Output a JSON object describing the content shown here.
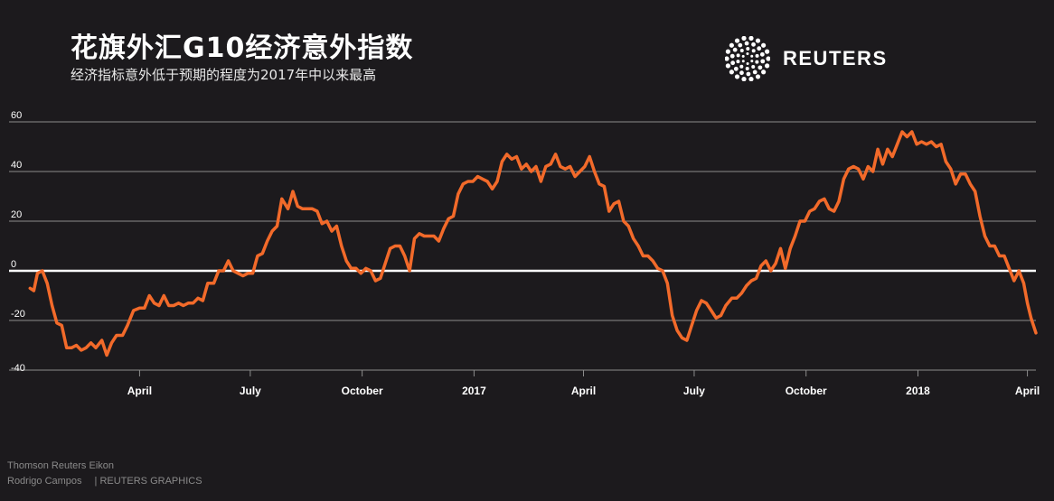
{
  "header": {
    "title": "花旗外汇G10经济意外指数",
    "subtitle": "经济指标意外低于预期的程度为2017年中以来最高"
  },
  "logo": {
    "text": "REUTERS",
    "icon": "reuters-dot-logo-icon"
  },
  "footer": {
    "source": "Thomson Reuters Eikon",
    "author": "Rodrigo Campos",
    "credit": "| REUTERS GRAPHICS"
  },
  "colors": {
    "background": "#1c1a1d",
    "line": "#f26a2a",
    "grid": "#8c8c8c",
    "zero_line": "#ffffff"
  },
  "chart_data": {
    "type": "line",
    "title": "花旗外汇G10经济意外指数",
    "ylim": [
      -40,
      60
    ],
    "yticks": [
      60,
      40,
      20,
      0,
      -20,
      -40
    ],
    "grid": true,
    "xlim": [
      "2016-01-01",
      "2018-04-08"
    ],
    "xticks": [
      {
        "date": "2016-04-01",
        "label": "April"
      },
      {
        "date": "2016-07-01",
        "label": "July"
      },
      {
        "date": "2016-10-01",
        "label": "October"
      },
      {
        "date": "2017-01-01",
        "label": "2017"
      },
      {
        "date": "2017-04-01",
        "label": "April"
      },
      {
        "date": "2017-07-01",
        "label": "July"
      },
      {
        "date": "2017-10-01",
        "label": "October"
      },
      {
        "date": "2018-01-01",
        "label": "2018"
      },
      {
        "date": "2018-04-01",
        "label": "April"
      }
    ],
    "series": [
      {
        "values": [
          [
            "2016-01-02",
            -7
          ],
          [
            "2016-01-05",
            -8
          ],
          [
            "2016-01-08",
            -1
          ],
          [
            "2016-01-12",
            0
          ],
          [
            "2016-01-16",
            -5
          ],
          [
            "2016-01-20",
            -14
          ],
          [
            "2016-01-24",
            -21
          ],
          [
            "2016-01-28",
            -22
          ],
          [
            "2016-02-01",
            -31
          ],
          [
            "2016-02-05",
            -31
          ],
          [
            "2016-02-09",
            -30
          ],
          [
            "2016-02-13",
            -32
          ],
          [
            "2016-02-17",
            -31
          ],
          [
            "2016-02-21",
            -29
          ],
          [
            "2016-02-25",
            -31
          ],
          [
            "2016-03-01",
            -28
          ],
          [
            "2016-03-05",
            -34
          ],
          [
            "2016-03-09",
            -29
          ],
          [
            "2016-03-13",
            -26
          ],
          [
            "2016-03-18",
            -26
          ],
          [
            "2016-03-22",
            -22
          ],
          [
            "2016-03-27",
            -16
          ],
          [
            "2016-04-01",
            -15
          ],
          [
            "2016-04-05",
            -15
          ],
          [
            "2016-04-09",
            -10
          ],
          [
            "2016-04-13",
            -13
          ],
          [
            "2016-04-17",
            -14
          ],
          [
            "2016-04-21",
            -10
          ],
          [
            "2016-04-25",
            -14
          ],
          [
            "2016-04-29",
            -14
          ],
          [
            "2016-05-03",
            -13
          ],
          [
            "2016-05-07",
            -14
          ],
          [
            "2016-05-11",
            -13
          ],
          [
            "2016-05-15",
            -13
          ],
          [
            "2016-05-19",
            -11
          ],
          [
            "2016-05-23",
            -12
          ],
          [
            "2016-05-27",
            -5
          ],
          [
            "2016-06-01",
            -5
          ],
          [
            "2016-06-05",
            0
          ],
          [
            "2016-06-09",
            0
          ],
          [
            "2016-06-13",
            4
          ],
          [
            "2016-06-17",
            0
          ],
          [
            "2016-06-21",
            -1
          ],
          [
            "2016-06-25",
            -2
          ],
          [
            "2016-06-29",
            -1
          ],
          [
            "2016-07-03",
            -1
          ],
          [
            "2016-07-07",
            6
          ],
          [
            "2016-07-11",
            7
          ],
          [
            "2016-07-15",
            12
          ],
          [
            "2016-07-19",
            16
          ],
          [
            "2016-07-23",
            18
          ],
          [
            "2016-07-27",
            29
          ],
          [
            "2016-08-01",
            25
          ],
          [
            "2016-08-05",
            32
          ],
          [
            "2016-08-09",
            26
          ],
          [
            "2016-08-13",
            25
          ],
          [
            "2016-08-17",
            25
          ],
          [
            "2016-08-21",
            25
          ],
          [
            "2016-08-25",
            24
          ],
          [
            "2016-08-29",
            19
          ],
          [
            "2016-09-02",
            20
          ],
          [
            "2016-09-06",
            16
          ],
          [
            "2016-09-10",
            18
          ],
          [
            "2016-09-14",
            10
          ],
          [
            "2016-09-18",
            4
          ],
          [
            "2016-09-22",
            1
          ],
          [
            "2016-09-26",
            1
          ],
          [
            "2016-09-30",
            -1
          ],
          [
            "2016-10-04",
            1
          ],
          [
            "2016-10-08",
            0
          ],
          [
            "2016-10-12",
            -4
          ],
          [
            "2016-10-16",
            -3
          ],
          [
            "2016-10-20",
            3
          ],
          [
            "2016-10-24",
            9
          ],
          [
            "2016-10-28",
            10
          ],
          [
            "2016-11-01",
            10
          ],
          [
            "2016-11-05",
            6
          ],
          [
            "2016-11-09",
            0
          ],
          [
            "2016-11-13",
            13
          ],
          [
            "2016-11-17",
            15
          ],
          [
            "2016-11-21",
            14
          ],
          [
            "2016-11-25",
            14
          ],
          [
            "2016-11-29",
            14
          ],
          [
            "2016-12-03",
            12
          ],
          [
            "2016-12-07",
            17
          ],
          [
            "2016-12-11",
            21
          ],
          [
            "2016-12-15",
            22
          ],
          [
            "2016-12-19",
            31
          ],
          [
            "2016-12-23",
            35
          ],
          [
            "2016-12-27",
            36
          ],
          [
            "2016-12-31",
            36
          ],
          [
            "2017-01-04",
            38
          ],
          [
            "2017-01-08",
            37
          ],
          [
            "2017-01-12",
            36
          ],
          [
            "2017-01-16",
            33
          ],
          [
            "2017-01-20",
            36
          ],
          [
            "2017-01-24",
            44
          ],
          [
            "2017-01-28",
            47
          ],
          [
            "2017-02-01",
            45
          ],
          [
            "2017-02-05",
            46
          ],
          [
            "2017-02-09",
            41
          ],
          [
            "2017-02-13",
            43
          ],
          [
            "2017-02-17",
            40
          ],
          [
            "2017-02-21",
            42
          ],
          [
            "2017-02-25",
            36
          ],
          [
            "2017-03-01",
            42
          ],
          [
            "2017-03-05",
            43
          ],
          [
            "2017-03-09",
            47
          ],
          [
            "2017-03-13",
            42
          ],
          [
            "2017-03-17",
            41
          ],
          [
            "2017-03-21",
            42
          ],
          [
            "2017-03-25",
            38
          ],
          [
            "2017-03-29",
            40
          ],
          [
            "2017-04-02",
            42
          ],
          [
            "2017-04-06",
            46
          ],
          [
            "2017-04-10",
            40
          ],
          [
            "2017-04-14",
            35
          ],
          [
            "2017-04-18",
            34
          ],
          [
            "2017-04-22",
            24
          ],
          [
            "2017-04-26",
            27
          ],
          [
            "2017-04-30",
            28
          ],
          [
            "2017-05-04",
            20
          ],
          [
            "2017-05-08",
            18
          ],
          [
            "2017-05-12",
            13
          ],
          [
            "2017-05-16",
            10
          ],
          [
            "2017-05-20",
            6
          ],
          [
            "2017-05-24",
            6
          ],
          [
            "2017-05-28",
            4
          ],
          [
            "2017-06-01",
            1
          ],
          [
            "2017-06-05",
            0
          ],
          [
            "2017-06-09",
            -5
          ],
          [
            "2017-06-13",
            -18
          ],
          [
            "2017-06-17",
            -24
          ],
          [
            "2017-06-21",
            -27
          ],
          [
            "2017-06-25",
            -28
          ],
          [
            "2017-06-29",
            -22
          ],
          [
            "2017-07-03",
            -16
          ],
          [
            "2017-07-07",
            -12
          ],
          [
            "2017-07-11",
            -13
          ],
          [
            "2017-07-15",
            -16
          ],
          [
            "2017-07-19",
            -19
          ],
          [
            "2017-07-23",
            -18
          ],
          [
            "2017-07-27",
            -14
          ],
          [
            "2017-08-01",
            -11
          ],
          [
            "2017-08-05",
            -11
          ],
          [
            "2017-08-09",
            -9
          ],
          [
            "2017-08-13",
            -6
          ],
          [
            "2017-08-17",
            -4
          ],
          [
            "2017-08-21",
            -3
          ],
          [
            "2017-08-25",
            2
          ],
          [
            "2017-08-29",
            4
          ],
          [
            "2017-09-02",
            0
          ],
          [
            "2017-09-06",
            3
          ],
          [
            "2017-09-10",
            9
          ],
          [
            "2017-09-14",
            1
          ],
          [
            "2017-09-18",
            9
          ],
          [
            "2017-09-22",
            14
          ],
          [
            "2017-09-26",
            20
          ],
          [
            "2017-09-30",
            20
          ],
          [
            "2017-10-04",
            24
          ],
          [
            "2017-10-08",
            25
          ],
          [
            "2017-10-12",
            28
          ],
          [
            "2017-10-16",
            29
          ],
          [
            "2017-10-20",
            25
          ],
          [
            "2017-10-24",
            24
          ],
          [
            "2017-10-28",
            28
          ],
          [
            "2017-11-01",
            37
          ],
          [
            "2017-11-05",
            41
          ],
          [
            "2017-11-09",
            42
          ],
          [
            "2017-11-13",
            41
          ],
          [
            "2017-11-17",
            37
          ],
          [
            "2017-11-21",
            42
          ],
          [
            "2017-11-25",
            40
          ],
          [
            "2017-11-29",
            49
          ],
          [
            "2017-12-03",
            43
          ],
          [
            "2017-12-07",
            49
          ],
          [
            "2017-12-11",
            46
          ],
          [
            "2017-12-15",
            51
          ],
          [
            "2017-12-19",
            56
          ],
          [
            "2017-12-23",
            54
          ],
          [
            "2017-12-27",
            56
          ],
          [
            "2017-12-31",
            51
          ],
          [
            "2018-01-04",
            52
          ],
          [
            "2018-01-08",
            51
          ],
          [
            "2018-01-12",
            52
          ],
          [
            "2018-01-16",
            50
          ],
          [
            "2018-01-20",
            51
          ],
          [
            "2018-01-24",
            44
          ],
          [
            "2018-01-28",
            41
          ],
          [
            "2018-02-01",
            35
          ],
          [
            "2018-02-05",
            39
          ],
          [
            "2018-02-09",
            39
          ],
          [
            "2018-02-13",
            35
          ],
          [
            "2018-02-17",
            32
          ],
          [
            "2018-02-21",
            22
          ],
          [
            "2018-02-25",
            14
          ],
          [
            "2018-03-01",
            10
          ],
          [
            "2018-03-05",
            10
          ],
          [
            "2018-03-09",
            6
          ],
          [
            "2018-03-13",
            6
          ],
          [
            "2018-03-17",
            1
          ],
          [
            "2018-03-21",
            -4
          ],
          [
            "2018-03-25",
            0
          ],
          [
            "2018-03-29",
            -5
          ],
          [
            "2018-04-01",
            -13
          ],
          [
            "2018-04-04",
            -19
          ],
          [
            "2018-04-08",
            -25
          ]
        ]
      }
    ]
  }
}
